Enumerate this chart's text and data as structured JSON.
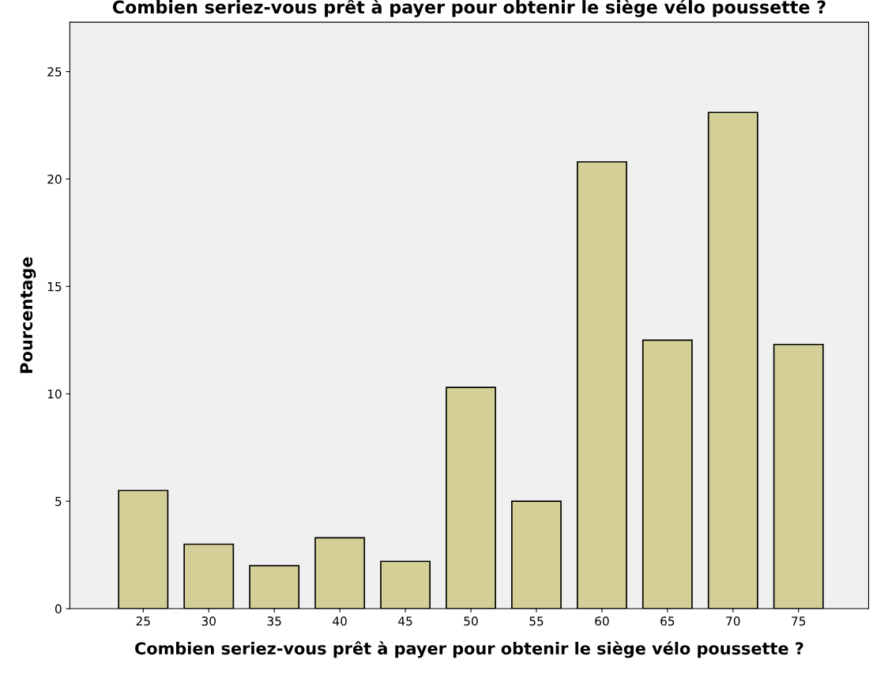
{
  "chart_data": {
    "type": "bar",
    "title": "Combien seriez-vous prêt à payer pour obtenir le siège vélo poussette ?",
    "xlabel": "Combien seriez-vous prêt à payer pour obtenir le siège vélo poussette ?",
    "ylabel": "Pourcentage",
    "categories": [
      "25",
      "30",
      "35",
      "40",
      "45",
      "50",
      "55",
      "60",
      "65",
      "70",
      "75"
    ],
    "series": [
      {
        "color": "#d3cf97",
        "values": [
          5.5,
          3.0,
          2.0,
          3.3,
          2.2,
          10.3,
          5.0,
          20.8,
          12.5,
          23.1,
          12.3
        ]
      }
    ],
    "ylim": [
      0,
      27.3
    ],
    "yticks": [
      0,
      5,
      10,
      15,
      20,
      25
    ],
    "grid": false,
    "legend": false
  }
}
